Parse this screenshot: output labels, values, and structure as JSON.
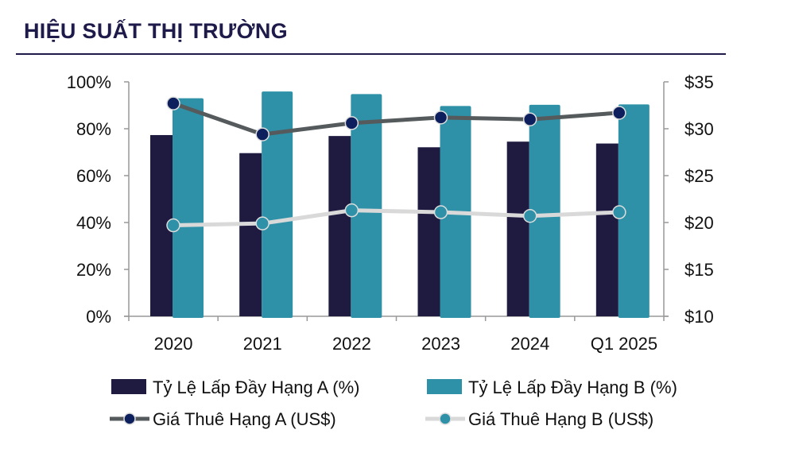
{
  "title": "HIỆU SUẤT THỊ TRƯỜNG",
  "chart_data": {
    "type": "bar",
    "title": "HIỆU SUẤT THỊ TRƯỜNG",
    "categories": [
      "2020",
      "2021",
      "2022",
      "2023",
      "2024",
      "Q1 2025"
    ],
    "y_left": {
      "ticks": [
        "0%",
        "20%",
        "40%",
        "60%",
        "80%",
        "100%"
      ],
      "range": [
        0,
        100
      ]
    },
    "y_right": {
      "ticks": [
        "$10",
        "$15",
        "$20",
        "$25",
        "$30",
        "$35"
      ],
      "range": [
        10,
        35
      ]
    },
    "series": [
      {
        "name": "Tỷ Lệ Lấp Đầy Hạng A (%)",
        "kind": "bar",
        "axis": "left",
        "color": "#1e1a40",
        "values": [
          77.3,
          69.6,
          76.9,
          72.1,
          74.5,
          73.7
        ]
      },
      {
        "name": "Tỷ Lệ Lấp Đầy Hạng B (%)",
        "kind": "bar",
        "axis": "left",
        "color": "#2e91a8",
        "values": [
          93.0,
          95.9,
          94.8,
          89.7,
          90.2,
          90.4
        ]
      },
      {
        "name": "Giá Thuê Hạng A (US$)",
        "kind": "line",
        "axis": "right",
        "color": "#555a5c",
        "marker": "#0d1f5c",
        "values": [
          32.7,
          29.4,
          30.6,
          31.2,
          31.0,
          31.7
        ]
      },
      {
        "name": "Giá Thuê Hạng B (US$)",
        "kind": "line",
        "axis": "right",
        "color": "#d9d9d9",
        "marker": "#2e91a8",
        "values": [
          19.7,
          19.9,
          21.3,
          21.1,
          20.7,
          21.1
        ]
      }
    ],
    "legend": "bottom",
    "grid": false
  }
}
